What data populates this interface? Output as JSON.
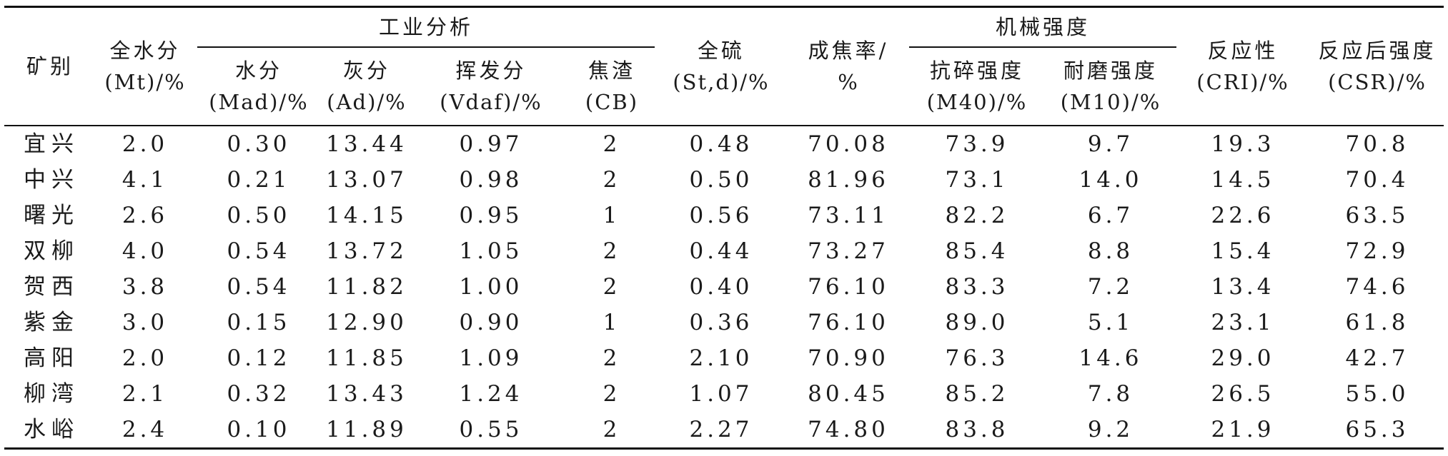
{
  "table": {
    "columns": [
      {
        "key": "mine",
        "l1": "矿别",
        "l2": ""
      },
      {
        "key": "mt",
        "l1": "全水分",
        "l2": "(Mt)/%"
      },
      {
        "key": "mad",
        "l1": "水分",
        "l2": "(Mad)/%"
      },
      {
        "key": "ad",
        "l1": "灰分",
        "l2": "(Ad)/%"
      },
      {
        "key": "vdaf",
        "l1": "挥发分",
        "l2": "(Vdaf)/%"
      },
      {
        "key": "cb",
        "l1": "焦渣",
        "l2": "(CB)"
      },
      {
        "key": "std",
        "l1": "全硫",
        "l2": "(St,d)/%"
      },
      {
        "key": "coke_yield",
        "l1": "成焦率/",
        "l2": "%"
      },
      {
        "key": "m40",
        "l1": "抗碎强度",
        "l2": "(M40)/%"
      },
      {
        "key": "m10",
        "l1": "耐磨强度",
        "l2": "(M10)/%"
      },
      {
        "key": "cri",
        "l1": "反应性",
        "l2": "(CRI)/%"
      },
      {
        "key": "csr",
        "l1": "反应后强度",
        "l2": "(CSR)/%"
      }
    ],
    "groups": [
      {
        "label": "工业分析"
      },
      {
        "label": "机械强度"
      }
    ],
    "rows": [
      [
        "宜兴",
        "2.0",
        "0.30",
        "13.44",
        "0.97",
        "2",
        "0.48",
        "70.08",
        "73.9",
        "9.7",
        "19.3",
        "70.8"
      ],
      [
        "中兴",
        "4.1",
        "0.21",
        "13.07",
        "0.98",
        "2",
        "0.50",
        "81.96",
        "73.1",
        "14.0",
        "14.5",
        "70.4"
      ],
      [
        "曙光",
        "2.6",
        "0.50",
        "14.15",
        "0.95",
        "1",
        "0.56",
        "73.11",
        "82.2",
        "6.7",
        "22.6",
        "63.5"
      ],
      [
        "双柳",
        "4.0",
        "0.54",
        "13.72",
        "1.05",
        "2",
        "0.44",
        "73.27",
        "85.4",
        "8.8",
        "15.4",
        "72.9"
      ],
      [
        "贺西",
        "3.8",
        "0.54",
        "11.82",
        "1.00",
        "2",
        "0.40",
        "76.10",
        "83.3",
        "7.2",
        "13.4",
        "74.6"
      ],
      [
        "紫金",
        "3.0",
        "0.15",
        "12.90",
        "0.90",
        "1",
        "0.36",
        "76.10",
        "89.0",
        "5.1",
        "23.1",
        "61.8"
      ],
      [
        "高阳",
        "2.0",
        "0.12",
        "11.85",
        "1.09",
        "2",
        "2.10",
        "70.90",
        "76.3",
        "14.6",
        "29.0",
        "42.7"
      ],
      [
        "柳湾",
        "2.1",
        "0.32",
        "13.43",
        "1.24",
        "2",
        "1.07",
        "80.45",
        "85.2",
        "7.8",
        "26.5",
        "55.0"
      ],
      [
        "水峪",
        "2.4",
        "0.10",
        "11.89",
        "0.55",
        "2",
        "2.27",
        "74.80",
        "83.8",
        "9.2",
        "21.9",
        "65.3"
      ]
    ]
  }
}
